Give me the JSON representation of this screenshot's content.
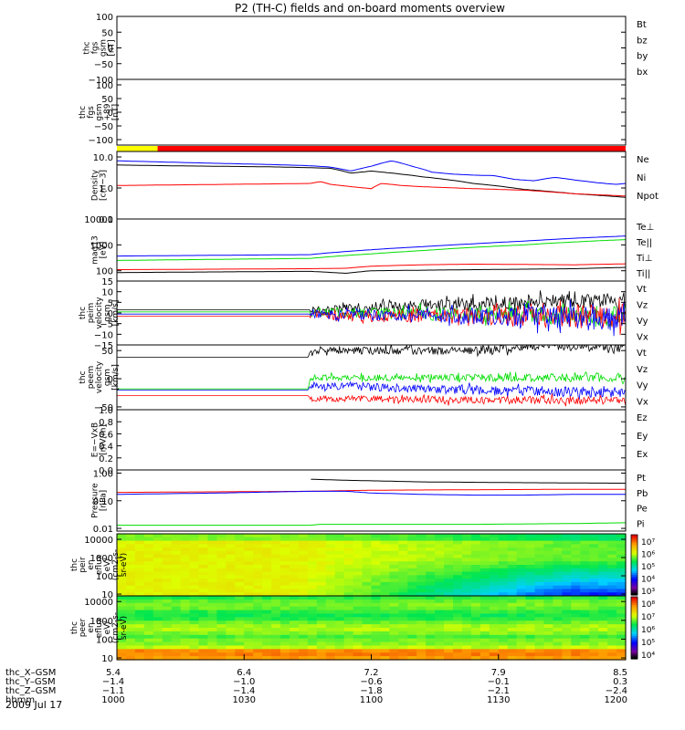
{
  "title": "P2 (TH-C) fields and on-board moments overview",
  "date": "2009 Jul 17",
  "colors": {
    "black": "#000000",
    "red": "#ff0000",
    "green": "#00dd00",
    "blue": "#0000ff",
    "yellow": "#ffff00"
  },
  "chart_data": [
    {
      "type": "line",
      "panel": "fgs",
      "ylabel": [
        "thc",
        "fgs",
        "gsm",
        "[nT]"
      ],
      "ylim": [
        -100,
        100
      ],
      "yticks": [
        100,
        50,
        0,
        -50,
        -100
      ],
      "ytick_labels": [
        "100",
        "50",
        "0",
        "−50",
        "−100"
      ],
      "legend": [
        {
          "label": "Bt",
          "color": "#000000"
        },
        {
          "label": "bz",
          "color": "#ff0000"
        },
        {
          "label": "by",
          "color": "#00dd00"
        },
        {
          "label": "bx",
          "color": "#0000ff"
        }
      ],
      "series": []
    },
    {
      "type": "line",
      "panel": "fgs-89",
      "ylabel": [
        "thc",
        "fgs",
        "gsm",
        "+89",
        "[nT]"
      ],
      "ylim": [
        -120,
        120
      ],
      "yticks": [
        100,
        50,
        0,
        -50,
        -100
      ],
      "ytick_labels": [
        "100",
        "50",
        "0",
        "−50",
        "−100"
      ],
      "legend": [],
      "series": []
    },
    {
      "type": "bar",
      "panel": "mode-bar",
      "segments": [
        {
          "from": 0.0,
          "to": 0.08,
          "color": "#ffff00"
        },
        {
          "from": 0.08,
          "to": 1.0,
          "color": "#ff0000"
        }
      ]
    },
    {
      "type": "line",
      "panel": "density",
      "ylabel": [
        "Density",
        "[cm−3]"
      ],
      "log": true,
      "ylim": [
        0.1,
        15
      ],
      "yticks": [
        10,
        1,
        0.1
      ],
      "ytick_labels": [
        "10.0",
        "1.0",
        "0.1"
      ],
      "legend": [
        {
          "label": "Ne",
          "color": "#ff0000"
        },
        {
          "label": "Ni",
          "color": "#000000"
        },
        {
          "label": "Npot",
          "color": "#0000ff"
        }
      ],
      "series": [
        {
          "name": "Npot",
          "color": "#0000ff",
          "x": [
            0,
            0.1,
            0.2,
            0.3,
            0.38,
            0.42,
            0.46,
            0.5,
            0.54,
            0.58,
            0.62,
            0.66,
            0.7,
            0.74,
            0.78,
            0.82,
            0.86,
            0.9,
            0.94,
            0.98,
            1.0
          ],
          "y": [
            7.5,
            6.8,
            6.2,
            5.7,
            5.2,
            4.7,
            3.5,
            5.0,
            7.5,
            5.0,
            3.2,
            2.8,
            2.6,
            2.5,
            1.9,
            1.7,
            2.2,
            1.8,
            1.5,
            1.3,
            1.4
          ]
        },
        {
          "name": "Ni",
          "color": "#000000",
          "x": [
            0,
            0.1,
            0.2,
            0.3,
            0.38,
            0.42,
            0.46,
            0.5,
            0.6,
            0.7,
            0.8,
            0.9,
            1.0
          ],
          "y": [
            5.5,
            5.2,
            5.0,
            4.8,
            4.5,
            4.3,
            3.0,
            3.5,
            2.3,
            1.4,
            0.9,
            0.65,
            0.5
          ]
        },
        {
          "name": "Ne",
          "color": "#ff0000",
          "x": [
            0,
            0.1,
            0.2,
            0.3,
            0.38,
            0.4,
            0.42,
            0.46,
            0.5,
            0.52,
            0.56,
            0.6,
            0.7,
            0.8,
            0.9,
            1.0
          ],
          "y": [
            1.2,
            1.25,
            1.3,
            1.35,
            1.4,
            1.6,
            1.3,
            1.1,
            0.95,
            1.4,
            1.2,
            1.1,
            0.95,
            0.85,
            0.65,
            0.55
          ]
        }
      ]
    },
    {
      "type": "line",
      "panel": "temperature",
      "ylabel": [
        "mag13",
        "[eV]"
      ],
      "log": true,
      "ylim": [
        40,
        10000
      ],
      "yticks": [
        10000,
        1000,
        100
      ],
      "ytick_labels": [
        "10000",
        "1000",
        "100"
      ],
      "legend": [
        {
          "label": "Te⊥",
          "color": "#ff0000"
        },
        {
          "label": "Te||",
          "color": "#000000"
        },
        {
          "label": "Ti⊥",
          "color": "#0000ff"
        },
        {
          "label": "Ti||",
          "color": "#00dd00"
        }
      ],
      "series": [
        {
          "name": "Ti⊥",
          "color": "#0000ff",
          "x": [
            0,
            0.38,
            0.5,
            0.6,
            0.7,
            0.8,
            0.9,
            1.0
          ],
          "y": [
            370,
            420,
            650,
            850,
            1100,
            1400,
            1800,
            2200
          ]
        },
        {
          "name": "Ti||",
          "color": "#00dd00",
          "x": [
            0,
            0.38,
            0.5,
            0.6,
            0.7,
            0.8,
            0.9,
            1.0
          ],
          "y": [
            250,
            300,
            450,
            600,
            800,
            1000,
            1300,
            1600
          ]
        },
        {
          "name": "Te⊥",
          "color": "#ff0000",
          "x": [
            0,
            0.38,
            0.45,
            0.5,
            0.6,
            0.7,
            0.8,
            0.9,
            1.0
          ],
          "y": [
            110,
            120,
            125,
            150,
            170,
            180,
            175,
            170,
            185
          ]
        },
        {
          "name": "Te||",
          "color": "#000000",
          "x": [
            0,
            0.38,
            0.45,
            0.5,
            0.6,
            0.7,
            0.8,
            0.9,
            1.0
          ],
          "y": [
            85,
            95,
            80,
            100,
            105,
            110,
            115,
            120,
            135
          ]
        }
      ]
    },
    {
      "type": "line",
      "panel": "peim-velocity",
      "ylabel": [
        "thc",
        "peim",
        "velocity",
        "gsm",
        "[km/s]"
      ],
      "ylim": [
        -15,
        15
      ],
      "yticks": [
        15,
        10,
        5,
        0,
        -5,
        -10,
        -15
      ],
      "ytick_labels": [
        "15",
        "10",
        "5",
        "0",
        "−5",
        "−10",
        "−15"
      ],
      "legend": [
        {
          "label": "Vt",
          "color": "#000000"
        },
        {
          "label": "Vz",
          "color": "#ff0000"
        },
        {
          "label": "Vy",
          "color": "#00dd00"
        },
        {
          "label": "Vx",
          "color": "#0000ff"
        }
      ],
      "series": [
        {
          "name": "Vt",
          "color": "#000000",
          "x": [
            0,
            0.38,
            0.6,
            0.8,
            1.0
          ],
          "y": [
            1.5,
            1.5,
            3.5,
            5.0,
            6.5
          ],
          "noise_from": 0.38,
          "noise": [
            2,
            4
          ]
        },
        {
          "name": "Vy",
          "color": "#00dd00",
          "x": [
            0,
            0.38,
            1.0
          ],
          "y": [
            0.5,
            0.5,
            -1.5
          ],
          "noise_from": 0.38,
          "noise": [
            2,
            5
          ]
        },
        {
          "name": "Vz",
          "color": "#ff0000",
          "x": [
            0,
            0.38,
            1.0
          ],
          "y": [
            -1.5,
            -1.5,
            -1.5
          ],
          "noise_from": 0.38,
          "noise": [
            2,
            6
          ]
        },
        {
          "name": "Vx",
          "color": "#0000ff",
          "x": [
            0,
            0.38,
            1.0
          ],
          "y": [
            -0.5,
            -0.5,
            -2.5
          ],
          "noise_from": 0.38,
          "noise": [
            2,
            6
          ]
        }
      ]
    },
    {
      "type": "line",
      "panel": "peem-velocity",
      "ylabel": [
        "thc",
        "peem",
        "velocity",
        "gsm",
        "[km/s]"
      ],
      "ylim": [
        -55,
        60
      ],
      "yticks": [
        50,
        0,
        -50
      ],
      "ytick_labels": [
        "50",
        "0",
        "−50"
      ],
      "legend": [
        {
          "label": "Vt",
          "color": "#000000"
        },
        {
          "label": "Vz",
          "color": "#ff0000"
        },
        {
          "label": "Vy",
          "color": "#00dd00"
        },
        {
          "label": "Vx",
          "color": "#0000ff"
        }
      ],
      "series": [
        {
          "name": "Vt",
          "color": "#000000",
          "x": [
            0,
            0.376,
            0.38,
            0.7,
            0.85,
            1.0
          ],
          "y": [
            38,
            38,
            50,
            50,
            58,
            55
          ],
          "noise_from": 0.38,
          "noise": [
            6,
            9
          ]
        },
        {
          "name": "Vx",
          "color": "#0000ff",
          "x": [
            0,
            0.376,
            0.38,
            0.7,
            1.0
          ],
          "y": [
            -20,
            -20,
            -12,
            -20,
            -25
          ],
          "noise_from": 0.38,
          "noise": [
            6,
            10
          ]
        },
        {
          "name": "Vy",
          "color": "#00dd00",
          "x": [
            0,
            0.376,
            0.38,
            0.7,
            1.0
          ],
          "y": [
            -18,
            -18,
            2,
            2,
            2
          ],
          "noise_from": 0.38,
          "noise": [
            5,
            8
          ]
        },
        {
          "name": "Vz",
          "color": "#ff0000",
          "x": [
            0,
            0.376,
            0.38,
            0.7,
            1.0
          ],
          "y": [
            -30,
            -30,
            -35,
            -38,
            -38
          ],
          "noise_from": 0.38,
          "noise": [
            5,
            8
          ]
        }
      ]
    },
    {
      "type": "line",
      "panel": "e-field",
      "ylabel": [
        "E=−VxB",
        "[mV/m]"
      ],
      "ylim": [
        0,
        1
      ],
      "yticks": [
        1.0,
        0.8,
        0.6,
        0.4,
        0.2,
        0.0
      ],
      "ytick_labels": [
        "1.0",
        "0.8",
        "0.6",
        "0.4",
        "0.2",
        "0.0"
      ],
      "legend": [
        {
          "label": "Ez",
          "color": "#ff0000"
        },
        {
          "label": "Ey",
          "color": "#00dd00"
        },
        {
          "label": "Ex",
          "color": "#0000ff"
        }
      ],
      "series": []
    },
    {
      "type": "line",
      "panel": "pressure",
      "ylabel": [
        "Pressure",
        "[nPa]"
      ],
      "log": true,
      "ylim": [
        0.008,
        1.3
      ],
      "yticks": [
        1.0,
        0.1,
        0.01
      ],
      "ytick_labels": [
        "1.00",
        "0.10",
        "0.01"
      ],
      "legend": [
        {
          "label": "Pt",
          "color": "#000000"
        },
        {
          "label": "Pb",
          "color": "#ff0000"
        },
        {
          "label": "Pe",
          "color": "#00dd00"
        },
        {
          "label": "Pi",
          "color": "#0000ff"
        }
      ],
      "series": [
        {
          "name": "Pt",
          "color": "#000000",
          "x": [
            0.38,
            0.45,
            0.6,
            0.8,
            1.0
          ],
          "y": [
            0.6,
            0.55,
            0.48,
            0.45,
            0.43
          ]
        },
        {
          "name": "Pb",
          "color": "#ff0000",
          "x": [
            0,
            0.38,
            0.5,
            0.7,
            0.9,
            1.0
          ],
          "y": [
            0.2,
            0.22,
            0.24,
            0.25,
            0.26,
            0.26
          ]
        },
        {
          "name": "Pi",
          "color": "#0000ff",
          "x": [
            0,
            0.2,
            0.38,
            0.45,
            0.5,
            0.6,
            0.7,
            0.8,
            0.9,
            1.0
          ],
          "y": [
            0.17,
            0.19,
            0.22,
            0.22,
            0.19,
            0.17,
            0.16,
            0.16,
            0.17,
            0.17
          ]
        },
        {
          "name": "Pe",
          "color": "#00dd00",
          "x": [
            0,
            0.38,
            0.4,
            0.5,
            0.7,
            0.9,
            1.0
          ],
          "y": [
            0.013,
            0.013,
            0.014,
            0.014,
            0.014,
            0.015,
            0.016
          ]
        }
      ]
    },
    {
      "type": "heatmap",
      "panel": "peir-spectrogram",
      "ylabel": [
        "thc",
        "peir",
        "en",
        "eflux",
        "eV/",
        "(cm2-s-",
        "sr-eV)"
      ],
      "log": true,
      "ylim": [
        8,
        20000
      ],
      "yticks": [
        10000,
        1000,
        100,
        10
      ],
      "ytick_labels": [
        "10000",
        "1000",
        "100",
        "10"
      ],
      "colorbar_labels": [
        "10⁷",
        "10⁶",
        "10⁵",
        "10⁴",
        "10³"
      ]
    },
    {
      "type": "heatmap",
      "panel": "peer-spectrogram",
      "ylabel": [
        "thc",
        "peer",
        "en",
        "eflux",
        "eV/",
        "(cm2-s-",
        "sr-eV)"
      ],
      "log": true,
      "ylim": [
        8,
        20000
      ],
      "yticks": [
        10000,
        1000,
        100,
        10
      ],
      "ytick_labels": [
        "10000",
        "1000",
        "100",
        "10"
      ],
      "colorbar_labels": [
        "10⁸",
        "10⁷",
        "10⁶",
        "10⁵",
        "10⁴"
      ]
    }
  ],
  "x_axis": {
    "rows": [
      {
        "label": "thc_X–GSM",
        "values": [
          "5.4",
          "6.4",
          "7.2",
          "7.9",
          "8.5"
        ]
      },
      {
        "label": "thc_Y–GSM",
        "values": [
          "−1.4",
          "−1.0",
          "−0.6",
          "−0.1",
          "0.3"
        ]
      },
      {
        "label": "thc_Z–GSM",
        "values": [
          "−1.1",
          "−1.4",
          "−1.8",
          "−2.1",
          "−2.4"
        ]
      },
      {
        "label": "hhmm",
        "values": [
          "1000",
          "1030",
          "1100",
          "1130",
          "1200"
        ]
      }
    ],
    "tick_fractions": [
      0.0,
      0.25,
      0.5,
      0.75,
      1.0
    ]
  }
}
